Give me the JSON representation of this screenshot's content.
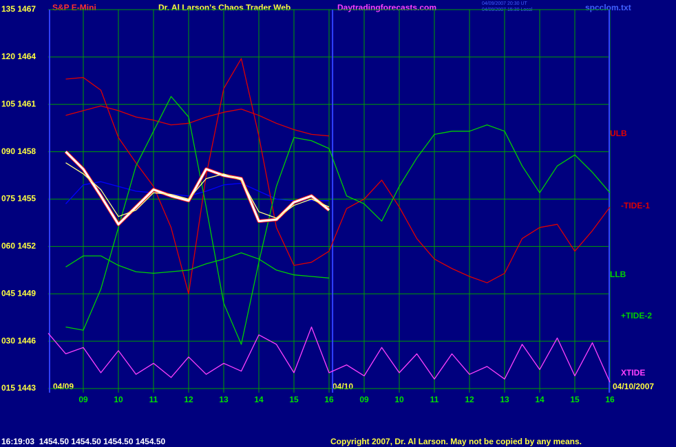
{
  "chart_data": {
    "type": "line",
    "subtitle": "S&P E-Mini",
    "title": "Dr. Al Larson's Chaos Trader Web",
    "site": "Daytradingforecasts.com",
    "timestamps": [
      "04/09/2007 20:30 UT",
      "04/09/2007 15:30 Local"
    ],
    "file": "spcclom.txt",
    "date_labels": [
      "04/09",
      "04/10",
      "04/10/2007"
    ],
    "quote": "16:19:03  1454.50 1454.50 1454.50 1454.50",
    "copyright": "Copyright 2007, Dr. Al Larson. May not be copied by any means.",
    "grid": true,
    "day_divider": 7.1,
    "xlim": [
      -1,
      15
    ],
    "xticks": [
      {
        "value": 0,
        "label": "09"
      },
      {
        "value": 1,
        "label": "10"
      },
      {
        "value": 2,
        "label": "11"
      },
      {
        "value": 3,
        "label": "12"
      },
      {
        "value": 4,
        "label": "13"
      },
      {
        "value": 5,
        "label": "14"
      },
      {
        "value": 6,
        "label": "15"
      },
      {
        "value": 7,
        "label": "16"
      },
      {
        "value": 8,
        "label": "09"
      },
      {
        "value": 9,
        "label": "10"
      },
      {
        "value": 10,
        "label": "11"
      },
      {
        "value": 11,
        "label": "12"
      },
      {
        "value": 12,
        "label": "13"
      },
      {
        "value": 13,
        "label": "14"
      },
      {
        "value": 14,
        "label": "15"
      },
      {
        "value": 15,
        "label": "16"
      }
    ],
    "ylim": [
      1443,
      1467
    ],
    "yticks": [
      {
        "value": 1467,
        "label": "135 1467"
      },
      {
        "value": 1464,
        "label": "120 1464"
      },
      {
        "value": 1461,
        "label": "105 1461"
      },
      {
        "value": 1458,
        "label": "090 1458"
      },
      {
        "value": 1455,
        "label": "075 1455"
      },
      {
        "value": 1452,
        "label": "060 1452"
      },
      {
        "value": 1449,
        "label": "045 1449"
      },
      {
        "value": 1446,
        "label": "030 1446"
      },
      {
        "value": 1443,
        "label": "015 1443"
      }
    ],
    "x": [
      -1,
      -0.5,
      0,
      0.5,
      1,
      1.5,
      2,
      2.5,
      3,
      3.5,
      4,
      4.5,
      5,
      5.5,
      6,
      6.5,
      7,
      7.5,
      8,
      8.5,
      9,
      9.5,
      10,
      10.5,
      11,
      11.5,
      12,
      12.5,
      13,
      13.5,
      14,
      14.5,
      15
    ],
    "series": [
      {
        "color": "#0000ff",
        "values": [
          null,
          1454.7,
          1455.9,
          1456.1,
          1455.8,
          1455.5,
          1455.4,
          1455.3,
          1455.2,
          1455.5,
          1455.9,
          1456.0,
          1455.5,
          1455.0,
          1454.9,
          1454.9,
          1454.9,
          null,
          null,
          null,
          null,
          null,
          null,
          null,
          null,
          null,
          null,
          null,
          null,
          null,
          null,
          null,
          null
        ]
      },
      {
        "name": "ULB",
        "color": "#e00000",
        "values": [
          null,
          1460.3,
          1460.6,
          1460.9,
          1460.6,
          1460.2,
          1460.0,
          1459.7,
          1459.8,
          1460.2,
          1460.5,
          1460.7,
          1460.3,
          1459.8,
          1459.4,
          1459.1,
          1459.0,
          null,
          null,
          null,
          null,
          null,
          null,
          null,
          null,
          null,
          null,
          null,
          null,
          null,
          null,
          null,
          null
        ]
      },
      {
        "name": "-TIDE-1",
        "color": "#e00000",
        "values": [
          null,
          1462.6,
          1462.7,
          1461.9,
          1458.9,
          1457.3,
          1455.8,
          1453.2,
          1449.0,
          1456.5,
          1462.0,
          1463.9,
          1459.0,
          1453.2,
          1450.8,
          1451.0,
          1451.7,
          1454.4,
          1455.0,
          1456.2,
          1454.5,
          1452.5,
          1451.2,
          1450.6,
          1450.1,
          1449.7,
          1450.3,
          1452.5,
          1453.2,
          1453.4,
          1451.7,
          1453.0,
          1454.5
        ]
      },
      {
        "name": "LLB",
        "color": "#00d000",
        "values": [
          null,
          1450.7,
          1451.4,
          1451.4,
          1450.8,
          1450.4,
          1450.3,
          1450.4,
          1450.5,
          1450.9,
          1451.2,
          1451.6,
          1451.2,
          1450.5,
          1450.2,
          1450.1,
          1450.0,
          null,
          null,
          null,
          null,
          null,
          null,
          null,
          null,
          null,
          null,
          null,
          null,
          null,
          null,
          null,
          null
        ]
      },
      {
        "name": "+TIDE-2",
        "color": "#00d000",
        "values": [
          null,
          1446.9,
          1446.7,
          1449.3,
          1453.2,
          1457.1,
          1459.3,
          1461.5,
          1460.2,
          1454.5,
          1448.4,
          1445.8,
          1451.0,
          1455.8,
          1458.9,
          1458.7,
          1458.2,
          1455.2,
          1454.7,
          1453.6,
          1455.8,
          1457.6,
          1459.1,
          1459.3,
          1459.3,
          1459.7,
          1459.3,
          1457.1,
          1455.4,
          1457.1,
          1457.8,
          1456.7,
          1455.4
        ]
      },
      {
        "name": "XTIDE",
        "color": "#ff40ff",
        "values": [
          1446.5,
          1445.2,
          1445.6,
          1444.0,
          1445.4,
          1443.9,
          1444.6,
          1443.7,
          1445.0,
          1443.9,
          1444.6,
          1444.1,
          1446.4,
          1445.8,
          1444.0,
          1446.9,
          1444.0,
          1444.5,
          1443.8,
          1445.6,
          1444.0,
          1445.2,
          1443.6,
          1445.2,
          1443.9,
          1444.4,
          1443.6,
          1445.8,
          1444.2,
          1446.2,
          1443.8,
          1445.9,
          1443.4
        ]
      },
      {
        "color": "#ff2020",
        "values": [
          null,
          1458.0,
          1456.9,
          1455.2,
          1453.4,
          1454.5,
          1455.6,
          1455.2,
          1454.9,
          1456.9,
          1456.5,
          1456.3,
          1453.6,
          1453.7,
          1454.8,
          1455.2,
          1454.3,
          null,
          null,
          null,
          null,
          null,
          null,
          null,
          null,
          null,
          null,
          null,
          null,
          null,
          null,
          null,
          null
        ]
      },
      {
        "color": "#ffffff",
        "values": [
          null,
          1458.0,
          1456.9,
          1455.2,
          1453.4,
          1454.5,
          1455.6,
          1455.2,
          1454.9,
          1456.9,
          1456.5,
          1456.3,
          1453.6,
          1453.7,
          1454.8,
          1455.2,
          1454.3,
          null,
          null,
          null,
          null,
          null,
          null,
          null,
          null,
          null,
          null,
          null,
          null,
          null,
          null,
          null,
          null
        ]
      },
      {
        "color": "#ffff80",
        "values": [
          null,
          1457.3,
          1456.6,
          1455.6,
          1453.9,
          1454.3,
          1455.4,
          1455.3,
          1455.0,
          1456.3,
          1456.6,
          1456.2,
          1454.2,
          1453.8,
          1454.6,
          1455.0,
          1454.5,
          null,
          null,
          null,
          null,
          null,
          null,
          null,
          null,
          null,
          null,
          null,
          null,
          null,
          null,
          null,
          null
        ]
      }
    ]
  }
}
